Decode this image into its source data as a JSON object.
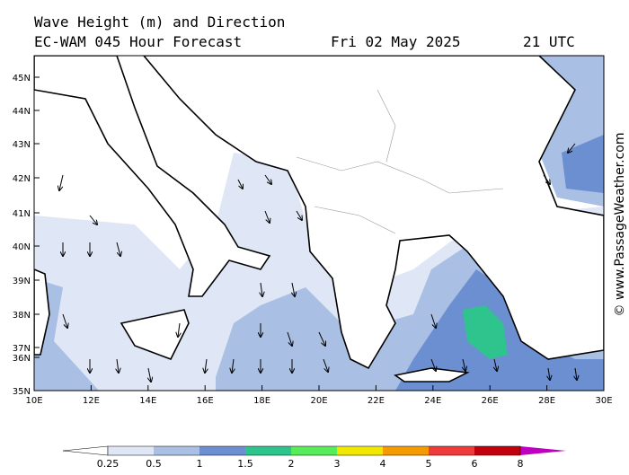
{
  "header": {
    "title": "Wave Height (m) and Direction",
    "forecast": "EC-WAM 045 Hour Forecast",
    "date": "Fri 02 May 2025",
    "time": "21 UTC"
  },
  "lat_labels": [
    "45N",
    "44N",
    "43N",
    "42N",
    "41N",
    "40N",
    "39N",
    "38N",
    "37N",
    "36N",
    "35N"
  ],
  "lon_labels": [
    "10E",
    "12E",
    "14E",
    "16E",
    "18E",
    "20E",
    "22E",
    "24E",
    "26E",
    "28E",
    "30E"
  ],
  "legend_labels": [
    "0.25",
    "0.5",
    "1",
    "1.5",
    "2",
    "3",
    "4",
    "5",
    "6",
    "8"
  ],
  "watermark": "© www.PassageWeather.com"
}
